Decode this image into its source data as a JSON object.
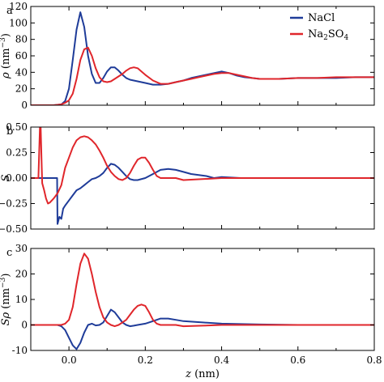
{
  "colors": {
    "NaCl": "#1f3c99",
    "Na2SO4": "#e0262b"
  },
  "chart_data": [
    {
      "type": "line",
      "panel_label": "a",
      "ylabel_main": "ρ",
      "ylabel_units": "(nm",
      "ylabel_exp": "−3",
      "ylabel_close": ")",
      "xlim": [
        -0.1,
        0.8
      ],
      "ylim": [
        0,
        120
      ],
      "yticks": [
        0,
        20,
        40,
        60,
        80,
        100,
        120
      ],
      "xticks": [
        -0.1,
        0.0,
        0.1,
        0.2,
        0.3,
        0.4,
        0.5,
        0.6,
        0.7,
        0.8
      ],
      "show_xtick_labels": false,
      "legend": {
        "position": "top-right",
        "entries": [
          {
            "series": "NaCl",
            "label": "NaCl"
          },
          {
            "series": "Na2SO4",
            "label_parts": [
              "Na",
              "2",
              "SO",
              "4"
            ]
          }
        ]
      },
      "series": [
        {
          "key": "NaCl",
          "x": [
            -0.1,
            -0.04,
            -0.02,
            -0.01,
            0.0,
            0.01,
            0.02,
            0.03,
            0.04,
            0.05,
            0.06,
            0.07,
            0.08,
            0.09,
            0.1,
            0.11,
            0.12,
            0.13,
            0.14,
            0.15,
            0.16,
            0.18,
            0.2,
            0.22,
            0.24,
            0.26,
            0.28,
            0.3,
            0.32,
            0.34,
            0.36,
            0.38,
            0.4,
            0.42,
            0.44,
            0.46,
            0.48,
            0.5,
            0.55,
            0.6,
            0.65,
            0.7,
            0.75,
            0.8
          ],
          "y": [
            0,
            0,
            1,
            5,
            20,
            55,
            92,
            113,
            95,
            60,
            38,
            27,
            27,
            33,
            41,
            46,
            46,
            42,
            37,
            33,
            31,
            29,
            27,
            25,
            25,
            26,
            28,
            30,
            33,
            35,
            37,
            39,
            41,
            39,
            36,
            34,
            33,
            32,
            32,
            33,
            33,
            33,
            34,
            34
          ]
        },
        {
          "key": "Na2SO4",
          "x": [
            -0.1,
            -0.04,
            -0.02,
            -0.01,
            0.0,
            0.01,
            0.02,
            0.03,
            0.04,
            0.05,
            0.06,
            0.07,
            0.08,
            0.09,
            0.1,
            0.11,
            0.12,
            0.13,
            0.14,
            0.15,
            0.16,
            0.17,
            0.18,
            0.2,
            0.22,
            0.24,
            0.26,
            0.28,
            0.3,
            0.32,
            0.34,
            0.36,
            0.38,
            0.4,
            0.42,
            0.44,
            0.46,
            0.48,
            0.5,
            0.55,
            0.6,
            0.65,
            0.7,
            0.75,
            0.8
          ],
          "y": [
            0,
            0,
            1,
            3,
            6,
            14,
            32,
            55,
            68,
            70,
            60,
            45,
            34,
            29,
            28,
            29,
            32,
            35,
            38,
            42,
            45,
            46,
            45,
            37,
            30,
            26,
            26,
            28,
            30,
            32,
            34,
            36,
            38,
            39,
            39,
            37,
            35,
            33,
            32,
            32,
            33,
            33,
            34,
            34,
            34
          ]
        }
      ]
    },
    {
      "type": "line",
      "panel_label": "b",
      "ylabel_main": "S",
      "xlim": [
        -0.1,
        0.8
      ],
      "ylim": [
        -0.5,
        0.5
      ],
      "yticks": [
        -0.5,
        -0.25,
        0.0,
        0.25,
        0.5
      ],
      "ytick_labels": [
        "−0.50",
        "−0.25",
        "0.00",
        "0.25",
        "0.50"
      ],
      "xticks": [
        -0.1,
        0.0,
        0.1,
        0.2,
        0.3,
        0.4,
        0.5,
        0.6,
        0.7,
        0.8
      ],
      "show_xtick_labels": false,
      "series": [
        {
          "key": "NaCl",
          "x": [
            -0.1,
            -0.04,
            -0.031,
            -0.03,
            -0.025,
            -0.02,
            -0.015,
            -0.01,
            0.0,
            0.01,
            0.02,
            0.03,
            0.04,
            0.05,
            0.06,
            0.07,
            0.08,
            0.09,
            0.1,
            0.11,
            0.12,
            0.13,
            0.14,
            0.15,
            0.16,
            0.17,
            0.18,
            0.2,
            0.22,
            0.24,
            0.26,
            0.28,
            0.3,
            0.32,
            0.34,
            0.36,
            0.38,
            0.4,
            0.45,
            0.5,
            0.6,
            0.7,
            0.8
          ],
          "y": [
            0,
            0,
            0,
            -0.45,
            -0.38,
            -0.4,
            -0.3,
            -0.27,
            -0.22,
            -0.17,
            -0.12,
            -0.1,
            -0.07,
            -0.04,
            -0.01,
            0.0,
            0.02,
            0.05,
            0.1,
            0.14,
            0.13,
            0.1,
            0.06,
            0.02,
            -0.01,
            -0.02,
            -0.02,
            0.0,
            0.04,
            0.08,
            0.09,
            0.08,
            0.06,
            0.04,
            0.03,
            0.02,
            0.0,
            0.01,
            0.0,
            0.0,
            0.0,
            0.0,
            0.0
          ]
        },
        {
          "key": "Na2SO4",
          "x": [
            -0.1,
            -0.08,
            -0.076,
            -0.074,
            -0.072,
            -0.07,
            -0.065,
            -0.06,
            -0.055,
            -0.05,
            -0.04,
            -0.03,
            -0.02,
            -0.01,
            0.0,
            0.01,
            0.02,
            0.03,
            0.04,
            0.05,
            0.06,
            0.07,
            0.08,
            0.09,
            0.1,
            0.11,
            0.12,
            0.13,
            0.14,
            0.15,
            0.16,
            0.17,
            0.18,
            0.19,
            0.2,
            0.21,
            0.22,
            0.23,
            0.24,
            0.26,
            0.28,
            0.3,
            0.35,
            0.4,
            0.45,
            0.5,
            0.6,
            0.7,
            0.8
          ],
          "y": [
            0,
            0,
            0.5,
            0.5,
            0.2,
            -0.05,
            -0.12,
            -0.2,
            -0.25,
            -0.24,
            -0.2,
            -0.15,
            -0.07,
            0.1,
            0.2,
            0.3,
            0.37,
            0.4,
            0.41,
            0.4,
            0.37,
            0.33,
            0.27,
            0.2,
            0.12,
            0.06,
            0.02,
            -0.01,
            -0.02,
            0.0,
            0.05,
            0.12,
            0.18,
            0.2,
            0.2,
            0.15,
            0.08,
            0.02,
            0.0,
            0.0,
            0.0,
            -0.02,
            -0.01,
            0.0,
            0.0,
            0.0,
            0.0,
            0.0,
            0.0
          ]
        }
      ]
    },
    {
      "type": "line",
      "panel_label": "c",
      "ylabel_main": "Sρ",
      "ylabel_units": "(nm",
      "ylabel_exp": "−3",
      "ylabel_close": ")",
      "xlabel_main": "z",
      "xlabel_units": "(nm)",
      "xlim": [
        -0.1,
        0.8
      ],
      "ylim": [
        -10,
        30
      ],
      "yticks": [
        -10,
        0,
        10,
        20,
        30
      ],
      "xticks": [
        -0.1,
        0.0,
        0.1,
        0.2,
        0.3,
        0.4,
        0.5,
        0.6,
        0.7,
        0.8
      ],
      "xtick_labels": [
        "",
        "0.0",
        "0.2",
        "0.4",
        "0.6",
        "0.8"
      ],
      "xtick_label_values": [
        0.0,
        0.2,
        0.4,
        0.6,
        0.8
      ],
      "show_xtick_labels": true,
      "series": [
        {
          "key": "NaCl",
          "x": [
            -0.1,
            -0.03,
            -0.02,
            -0.01,
            0.0,
            0.01,
            0.02,
            0.03,
            0.04,
            0.05,
            0.06,
            0.07,
            0.08,
            0.09,
            0.1,
            0.11,
            0.12,
            0.13,
            0.14,
            0.15,
            0.16,
            0.17,
            0.18,
            0.2,
            0.22,
            0.24,
            0.26,
            0.28,
            0.3,
            0.35,
            0.4,
            0.5,
            0.6,
            0.7,
            0.8
          ],
          "y": [
            0,
            0,
            -0.5,
            -2,
            -5,
            -8,
            -9.5,
            -7,
            -3,
            0,
            0.5,
            -0.2,
            0,
            1,
            3.5,
            6,
            5,
            3,
            1,
            0,
            -0.5,
            -0.3,
            0,
            0.5,
            1.5,
            2.5,
            2.5,
            2,
            1.5,
            1,
            0.5,
            0.2,
            0,
            0,
            0
          ]
        },
        {
          "key": "Na2SO4",
          "x": [
            -0.1,
            -0.02,
            -0.01,
            0.0,
            0.01,
            0.02,
            0.03,
            0.04,
            0.05,
            0.06,
            0.07,
            0.08,
            0.09,
            0.1,
            0.11,
            0.12,
            0.13,
            0.14,
            0.15,
            0.16,
            0.17,
            0.18,
            0.19,
            0.2,
            0.21,
            0.22,
            0.23,
            0.24,
            0.26,
            0.28,
            0.3,
            0.35,
            0.4,
            0.5,
            0.6,
            0.7,
            0.8
          ],
          "y": [
            0,
            0,
            0.5,
            2,
            7,
            16,
            24,
            28,
            26,
            20,
            13,
            7,
            3,
            1,
            0,
            -0.5,
            0,
            1,
            2,
            4,
            6,
            7.5,
            8,
            7.5,
            5,
            2,
            0.5,
            0,
            0,
            0,
            -0.5,
            -0.3,
            0,
            0,
            0,
            0,
            0
          ]
        }
      ]
    }
  ]
}
